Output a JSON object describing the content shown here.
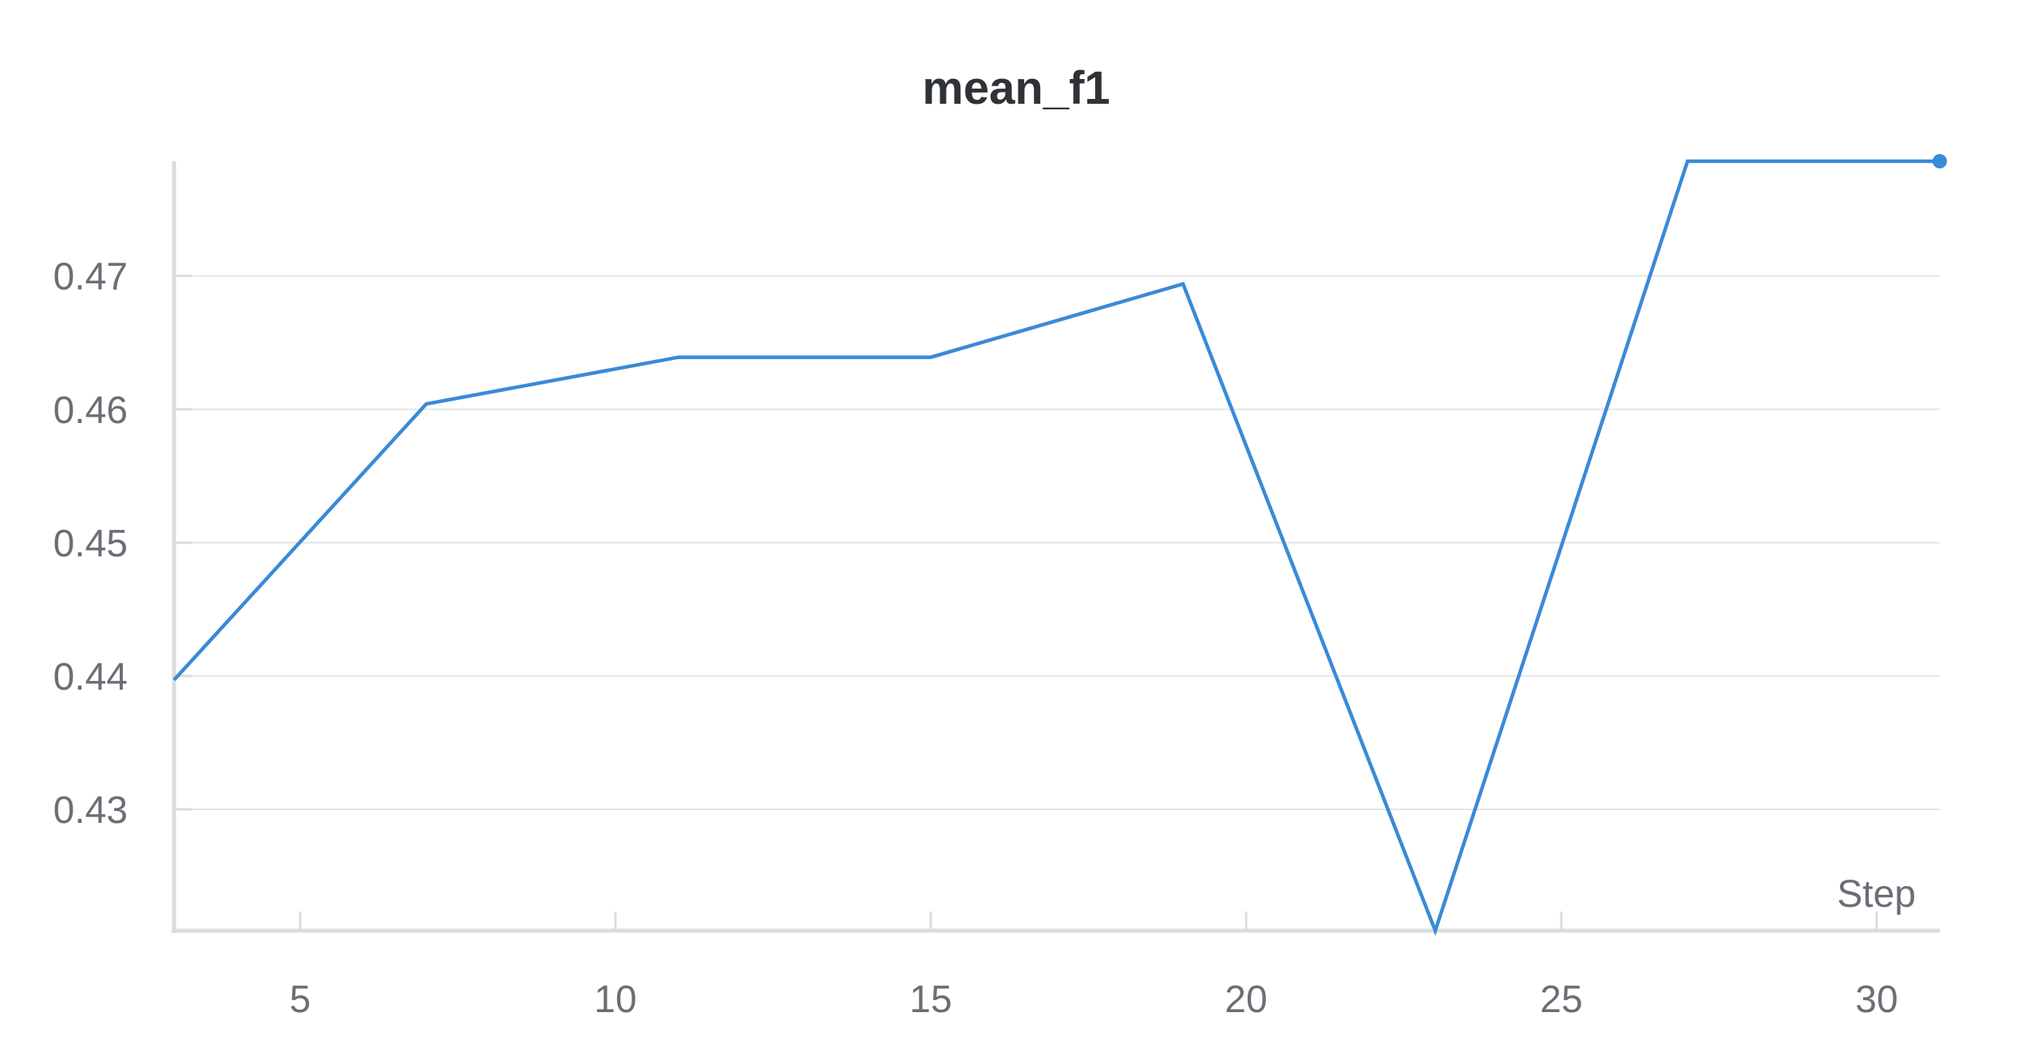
{
  "chart_data": {
    "type": "line",
    "title": "mean_f1",
    "xlabel": "Step",
    "ylabel": "",
    "xlim": [
      3,
      31
    ],
    "ylim": [
      0.4209,
      0.4786
    ],
    "x_ticks": [
      5,
      10,
      15,
      20,
      25,
      30
    ],
    "y_ticks": [
      0.43,
      0.44,
      0.45,
      0.46,
      0.47
    ],
    "x_tick_labels": [
      "5",
      "10",
      "15",
      "20",
      "25",
      "30"
    ],
    "y_tick_labels": [
      "0.43",
      "0.44",
      "0.45",
      "0.46",
      "0.47"
    ],
    "grid": true,
    "legend": "none",
    "series": [
      {
        "color": "#3a8ad6",
        "x": [
          3,
          7,
          11,
          15,
          19,
          23,
          27,
          31
        ],
        "y": [
          0.4397,
          0.4604,
          0.4639,
          0.4639,
          0.4694,
          0.4209,
          0.4786,
          0.4786
        ]
      }
    ]
  }
}
